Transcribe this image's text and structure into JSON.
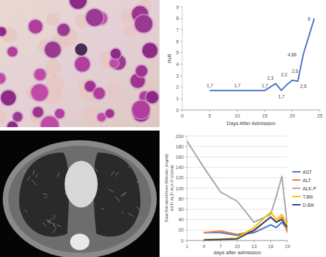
{
  "chart_data": [
    {
      "type": "line",
      "xlabel": "Days After Admission",
      "ylabel": "INR",
      "x": [
        5,
        10,
        15,
        17,
        18,
        19,
        20,
        21,
        22,
        24
      ],
      "values": [
        1.7,
        1.7,
        1.7,
        2.3,
        1.7,
        2.2,
        2.6,
        2.5,
        4.86,
        8
      ],
      "value_labels": [
        "1,7",
        "1,7",
        "1,7",
        "2,3",
        "1,7",
        "2,2",
        "2,6",
        "2,5",
        "4,86",
        "8"
      ],
      "color": "#4472c4",
      "xlim": [
        0,
        25
      ],
      "xticks": [
        0,
        5,
        10,
        15,
        20,
        25
      ],
      "ylim": [
        0,
        9
      ],
      "yticks": [
        0,
        1,
        2,
        3,
        4,
        5,
        6,
        7,
        8,
        9
      ],
      "grid": false,
      "data_labels": true
    },
    {
      "type": "line",
      "xlabel": "days after admission",
      "ylabel": [
        "Total Bilirubin/Direct Bilirubin (mg/dl)",
        "AST/ ALT/ ALK.P (IU/ml)"
      ],
      "x": [
        1,
        4,
        7,
        10,
        13,
        16,
        17,
        18,
        19
      ],
      "series": [
        {
          "name": "AST",
          "color": "#4472c4",
          "values": [
            null,
            15,
            15,
            10,
            15,
            30,
            25,
            35,
            20
          ]
        },
        {
          "name": "ALT",
          "color": "#ed7d31",
          "values": [
            null,
            15,
            18,
            12,
            18,
            45,
            35,
            45,
            15
          ]
        },
        {
          "name": "ALK.P",
          "color": "#a5a5a5",
          "values": [
            190,
            140,
            93,
            75,
            35,
            50,
            85,
            123,
            25
          ]
        },
        {
          "name": "T.Bili",
          "color": "#ffc000",
          "values": [
            null,
            2,
            3,
            5,
            25,
            55,
            40,
            50,
            30
          ]
        },
        {
          "name": "D.Bili",
          "color": "#264478",
          "values": [
            null,
            1,
            2,
            3,
            20,
            45,
            35,
            40,
            25
          ]
        }
      ],
      "xlim": [
        1,
        19
      ],
      "xticks": [
        1,
        4,
        7,
        10,
        13,
        16,
        19
      ],
      "ylim": [
        0,
        200
      ],
      "yticks": [
        0,
        20,
        40,
        60,
        80,
        100,
        120,
        140,
        160,
        180,
        200
      ],
      "grid": true,
      "legend": "right"
    }
  ]
}
